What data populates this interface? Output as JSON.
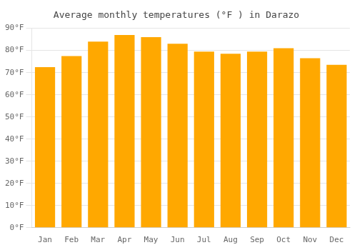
{
  "chart_data": {
    "type": "bar",
    "title": "Average monthly temperatures (°F ) in Darazo",
    "categories": [
      "Jan",
      "Feb",
      "Mar",
      "Apr",
      "May",
      "Jun",
      "Jul",
      "Aug",
      "Sep",
      "Oct",
      "Nov",
      "Dec"
    ],
    "values": [
      72.5,
      77.5,
      84.0,
      87.0,
      86.0,
      83.0,
      79.5,
      78.5,
      79.5,
      81.0,
      76.5,
      73.5
    ],
    "color": "#FFA800",
    "ylim": [
      0,
      90
    ],
    "yticks": [
      {
        "value": 0,
        "label": "0°F"
      },
      {
        "value": 10,
        "label": "10°F"
      },
      {
        "value": 20,
        "label": "20°F"
      },
      {
        "value": 30,
        "label": "30°F"
      },
      {
        "value": 40,
        "label": "40°F"
      },
      {
        "value": 50,
        "label": "50°F"
      },
      {
        "value": 60,
        "label": "60°F"
      },
      {
        "value": 70,
        "label": "70°F"
      },
      {
        "value": 80,
        "label": "80°F"
      },
      {
        "value": 90,
        "label": "90°F"
      }
    ],
    "grid": true
  }
}
